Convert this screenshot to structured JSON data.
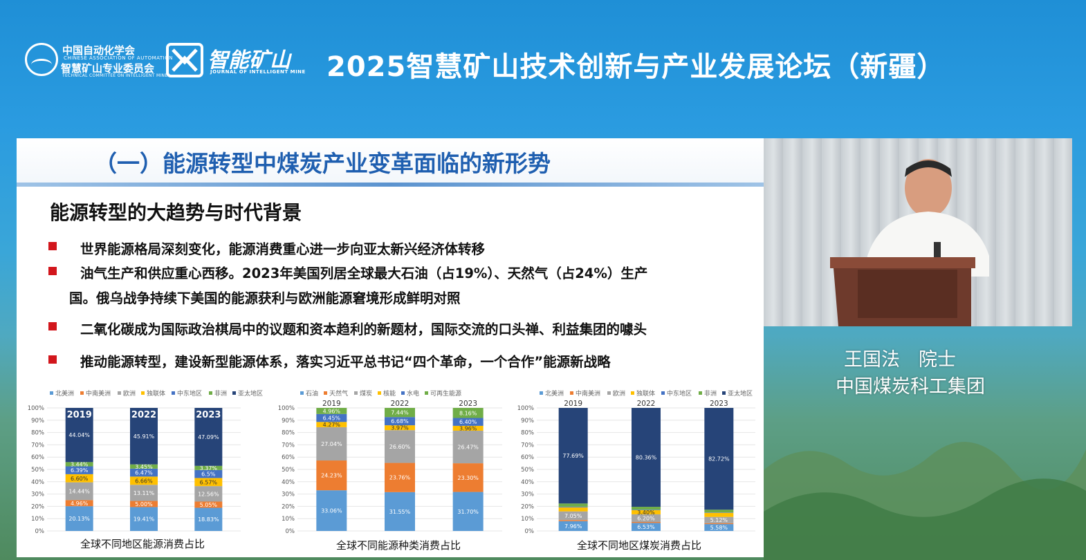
{
  "header": {
    "assoc_cn": "中国自动化学会",
    "assoc_en": "CHINESE ASSOCIATION OF AUTOMATION",
    "committee_cn": "智慧矿山专业委员会",
    "committee_en": "TECHNICAL COMMITTEE ON INTELLIGENT MINE",
    "journal_cn": "智能矿山",
    "journal_en": "JOURNAL OF INTELLIGENT MINE",
    "forum_title": "2025智慧矿山技术创新与产业发展论坛（新疆）"
  },
  "slide": {
    "section_title": "（一）能源转型中煤炭产业变革面临的新形势",
    "subtitle": "能源转型的大趋势与时代背景",
    "bullets": [
      {
        "line1": "世界能源格局深刻变化，能源消费重心进一步向亚太新兴经济体转移",
        "line2": ""
      },
      {
        "line1": "油气生产和供应重心西移。2023年美国列居全球最大石油（占19%）、天然气（占24%）生产",
        "line2": "国。俄乌战争持续下美国的能源获利与欧洲能源窘境形成鲜明对照"
      },
      {
        "line1": "二氧化碳成为国际政治棋局中的议题和资本趋利的新题材，国际交流的口头禅、利益集团的噱头",
        "line2": ""
      },
      {
        "line1": "推动能源转型，建设新型能源体系，落实习近平总书记“四个革命，一个合作”能源新战略",
        "line2": ""
      }
    ],
    "bullet_color": "#d2161c",
    "title_color": "#1f5fb0"
  },
  "chart_data": [
    {
      "type": "bar",
      "stacked": true,
      "title": "全球不同地区能源消费占比",
      "categories": [
        "2019",
        "2022",
        "2023"
      ],
      "yticks": [
        "0%",
        "10%",
        "20%",
        "30%",
        "40%",
        "50%",
        "60%",
        "70%",
        "80%",
        "90%",
        "100%"
      ],
      "ylim": [
        0,
        100
      ],
      "legend_position": "top",
      "series": [
        {
          "name": "北美洲",
          "color": "#5b9bd5",
          "values": [
            20.13,
            19.41,
            18.83
          ],
          "labels": [
            "20.13%",
            "19.41%",
            "18.83%"
          ]
        },
        {
          "name": "中南美洲",
          "color": "#ed7d31",
          "values": [
            4.96,
            5.0,
            5.05
          ],
          "labels": [
            "4.96%",
            "5.00%",
            "5.05%"
          ]
        },
        {
          "name": "欧洲",
          "color": "#a5a5a5",
          "values": [
            14.44,
            13.11,
            12.56
          ],
          "labels": [
            "14.44%",
            "13.11%",
            "12.56%"
          ]
        },
        {
          "name": "独联体",
          "color": "#ffc000",
          "values": [
            6.6,
            6.66,
            6.57
          ],
          "labels": [
            "6.60%",
            "6.66%",
            "6.57%"
          ]
        },
        {
          "name": "中东地区",
          "color": "#4472c4",
          "values": [
            6.39,
            6.47,
            6.5
          ],
          "labels": [
            "6.39%",
            "6.47%",
            "6.5%"
          ]
        },
        {
          "name": "非洲",
          "color": "#70ad47",
          "values": [
            3.44,
            3.45,
            3.37
          ],
          "labels": [
            "3.44%",
            "3.45%",
            "3.37%"
          ]
        },
        {
          "name": "亚太地区",
          "color": "#264478",
          "values": [
            44.04,
            45.91,
            47.09
          ],
          "labels": [
            "44.04%",
            "45.91%",
            "47.09%"
          ]
        }
      ]
    },
    {
      "type": "bar",
      "stacked": true,
      "title": "全球不同能源种类消费占比",
      "categories": [
        "2019",
        "2022",
        "2023"
      ],
      "yticks": [
        "0%",
        "10%",
        "20%",
        "30%",
        "40%",
        "50%",
        "60%",
        "70%",
        "80%",
        "90%",
        "100%"
      ],
      "ylim": [
        0,
        100
      ],
      "legend_position": "top",
      "series": [
        {
          "name": "石油",
          "color": "#5b9bd5",
          "values": [
            33.06,
            31.55,
            31.7
          ],
          "labels": [
            "33.06%",
            "31.55%",
            "31.70%"
          ]
        },
        {
          "name": "天然气",
          "color": "#ed7d31",
          "values": [
            24.23,
            23.76,
            23.3
          ],
          "labels": [
            "24.23%",
            "23.76%",
            "23.30%"
          ]
        },
        {
          "name": "煤炭",
          "color": "#a5a5a5",
          "values": [
            27.04,
            26.6,
            26.47
          ],
          "labels": [
            "27.04%",
            "26.60%",
            "26.47%"
          ]
        },
        {
          "name": "核能",
          "color": "#ffc000",
          "values": [
            4.27,
            3.97,
            3.96
          ],
          "labels": [
            "4.27%",
            "3.97%",
            "3.96%"
          ]
        },
        {
          "name": "水电",
          "color": "#4472c4",
          "values": [
            6.45,
            6.68,
            6.4
          ],
          "labels": [
            "6.45%",
            "6.68%",
            "6.40%"
          ]
        },
        {
          "name": "可再生能源",
          "color": "#70ad47",
          "values": [
            4.96,
            7.44,
            8.16
          ],
          "labels": [
            "4.96%",
            "7.44%",
            "8.16%"
          ]
        }
      ]
    },
    {
      "type": "bar",
      "stacked": true,
      "title": "全球不同地区煤炭消费占比",
      "categories": [
        "2019",
        "2022",
        "2023"
      ],
      "yticks": [
        "0%",
        "10%",
        "20%",
        "30%",
        "40%",
        "50%",
        "60%",
        "70%",
        "80%",
        "90%",
        "100%"
      ],
      "ylim": [
        0,
        100
      ],
      "legend_position": "top",
      "series": [
        {
          "name": "北美洲",
          "color": "#5b9bd5",
          "values": [
            7.96,
            6.53,
            5.58
          ],
          "labels": [
            "7.96%",
            "6.53%",
            "5.58%"
          ]
        },
        {
          "name": "中南美洲",
          "color": "#ed7d31",
          "values": [
            0.89,
            0.79,
            0.74
          ],
          "labels": [
            "0.89%",
            "0.79%",
            "0.74%"
          ]
        },
        {
          "name": "欧洲",
          "color": "#a5a5a5",
          "values": [
            7.05,
            6.2,
            5.12
          ],
          "labels": [
            "7.05%",
            "6.20%",
            "5.12%"
          ]
        },
        {
          "name": "独联体",
          "color": "#ffc000",
          "values": [
            3.33,
            3.4,
            3.34
          ],
          "labels": [
            "3.33%",
            "3.40%",
            "3.34%"
          ]
        },
        {
          "name": "中东地区",
          "color": "#4472c4",
          "values": [
            0.5,
            0.4,
            0.3
          ],
          "labels": [
            "",
            "",
            ""
          ]
        },
        {
          "name": "非洲",
          "color": "#70ad47",
          "values": [
            2.58,
            2.32,
            2.2
          ],
          "labels": [
            "2.58%",
            "2.32%",
            "2.2%"
          ]
        },
        {
          "name": "亚太地区",
          "color": "#264478",
          "values": [
            77.69,
            80.36,
            82.72
          ],
          "labels": [
            "77.69%",
            "80.36%",
            "82.72%"
          ]
        }
      ]
    }
  ],
  "speaker": {
    "name": "王国法　院士",
    "org": "中国煤炭科工集团"
  }
}
